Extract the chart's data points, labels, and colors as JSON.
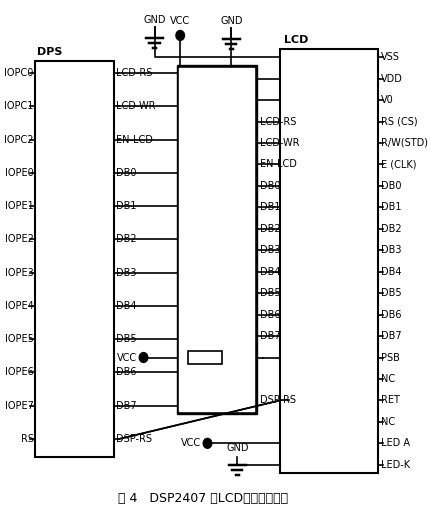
{
  "title": "图 4   DSP2407 与LCD的接口电路及",
  "bg_color": "#ffffff",
  "dsp_label": "DPS",
  "lcd_label": "LCD",
  "dsp_left_pins": [
    "IOPC0",
    "IOPC1",
    "IOPC2",
    "IOPE0",
    "IOPE1",
    "IOPE2",
    "IOPE3",
    "IOPE4",
    "IOPE5",
    "IOPE6",
    "IOPE7",
    "RS"
  ],
  "dsp_right_pins": [
    "LCD-RS",
    "LCD-WR",
    "EN-LCD",
    "DB0",
    "DB1",
    "DB2",
    "DB3",
    "DB4",
    "DB5",
    "DB6",
    "DB7",
    "DSP-RS"
  ],
  "lcd_right_pins": [
    "VSS",
    "VDD",
    "V0",
    "RS (CS)",
    "R/W(STD)",
    "E (CLK)",
    "DB0",
    "DB1",
    "DB2",
    "DB3",
    "DB4",
    "DB5",
    "DB6",
    "DB7",
    "PSB",
    "NC",
    "RET",
    "NC",
    "LED A",
    "LED-K"
  ],
  "lcd_left_signals": {
    "LCD-RS": 3,
    "LCD-WR": 4,
    "EN-LCD": 5,
    "DB0": 6,
    "DB1": 7,
    "DB2": 8,
    "DB3": 9,
    "DB4": 10,
    "DB5": 11,
    "DB6": 12,
    "DB7": 13,
    "DSP-RS": 16
  }
}
